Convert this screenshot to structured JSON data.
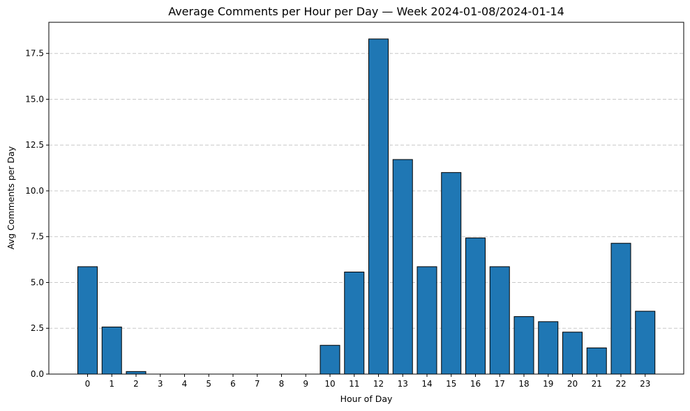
{
  "chart_data": {
    "type": "bar",
    "title": "Average Comments per Hour per Day — Week 2024-01-08/2024-01-14",
    "xlabel": "Hour of Day",
    "ylabel": "Avg Comments per Day",
    "categories": [
      "0",
      "1",
      "2",
      "3",
      "4",
      "5",
      "6",
      "7",
      "8",
      "9",
      "10",
      "11",
      "12",
      "13",
      "14",
      "15",
      "16",
      "17",
      "18",
      "19",
      "20",
      "21",
      "22",
      "23"
    ],
    "values": [
      5.86,
      2.57,
      0.14,
      0,
      0,
      0,
      0,
      0,
      0,
      0,
      1.57,
      5.57,
      18.29,
      11.71,
      5.86,
      11.0,
      7.43,
      5.86,
      3.14,
      2.86,
      2.29,
      1.43,
      7.14,
      3.43
    ],
    "ylim": [
      0,
      19.2
    ],
    "yticks": [
      0.0,
      2.5,
      5.0,
      7.5,
      10.0,
      12.5,
      15.0,
      17.5
    ],
    "ytick_labels": [
      "0.0",
      "2.5",
      "5.0",
      "7.5",
      "10.0",
      "12.5",
      "15.0",
      "17.5"
    ],
    "grid": "y-dashed",
    "bar_color": "#1f77b4",
    "edge_color": "#000000",
    "grid_color": "#c8c8c8"
  }
}
